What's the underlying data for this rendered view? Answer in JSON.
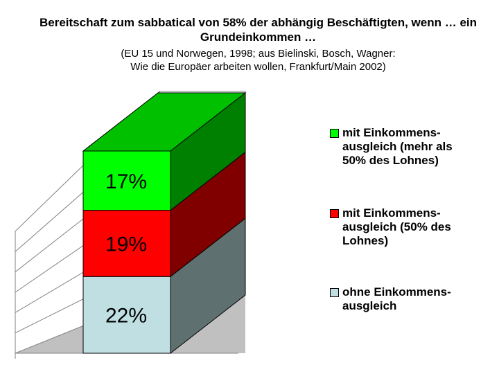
{
  "chart_data": {
    "type": "bar",
    "stacked": true,
    "three_d": true,
    "title": "Bereitschaft zum sabbatical von 58% der abhängig Beschäftigten, wenn … ein Grundeinkommen …",
    "subtitle_line1": "(EU 15 und Norwegen, 1998; aus Bielinski, Bosch, Wagner:",
    "subtitle_line2": "Wie die Europäer arbeiten wollen, Frankfurt/Main 2002)",
    "categories": [
      ""
    ],
    "total": 58,
    "ylim": [
      0,
      58
    ],
    "grid": true,
    "legend_position": "right",
    "series": [
      {
        "name": "ohne Einkommens-\nausgleich",
        "values": [
          22
        ],
        "label": "22%",
        "color": "#bfdfe3",
        "side_color": "#5f7070"
      },
      {
        "name": "mit Einkommens-\nausgleich (50% des\nLohnes)",
        "values": [
          19
        ],
        "label": "19%",
        "color": "#ff0000",
        "side_color": "#800000"
      },
      {
        "name": "mit Einkommens-\nausgleich (mehr als\n50% des Lohnes)",
        "values": [
          17
        ],
        "label": "17%",
        "color": "#00ff00",
        "side_color": "#008000"
      }
    ]
  }
}
